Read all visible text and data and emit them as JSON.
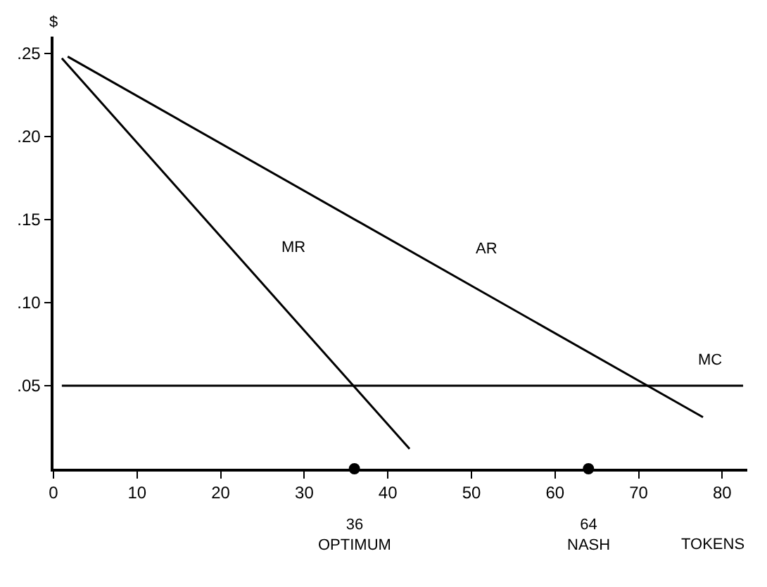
{
  "chart_data": {
    "type": "line",
    "xlabel": "TOKENS",
    "ylabel": "$",
    "xlim": [
      0,
      83
    ],
    "ylim": [
      0,
      0.26
    ],
    "xticks": [
      0,
      10,
      20,
      30,
      40,
      50,
      60,
      70,
      80
    ],
    "yticks": [
      {
        "value": 0.05,
        "label": ".05"
      },
      {
        "value": 0.1,
        "label": ".10"
      },
      {
        "value": 0.15,
        "label": ".15"
      },
      {
        "value": 0.2,
        "label": ".20"
      },
      {
        "value": 0.25,
        "label": ".25"
      }
    ],
    "legend": false,
    "line_style": "solid",
    "marker": "none",
    "series": [
      {
        "name": "MR",
        "color": "#000000",
        "x": [
          1.0,
          42.6
        ],
        "values": [
          0.247,
          0.012
        ]
      },
      {
        "name": "AR",
        "color": "#000000",
        "x": [
          1.7,
          77.7
        ],
        "values": [
          0.248,
          0.031
        ]
      },
      {
        "name": "MC",
        "color": "#000000",
        "x": [
          1.0,
          82.5
        ],
        "values": [
          0.05,
          0.05
        ]
      },
      {
        "type": "scatter",
        "marker": "circle",
        "color": "#000000",
        "x": [
          36,
          64
        ],
        "values": [
          0,
          0
        ]
      }
    ],
    "annotations": [
      "36\nOPTIMUM",
      "64\nNASH"
    ]
  }
}
